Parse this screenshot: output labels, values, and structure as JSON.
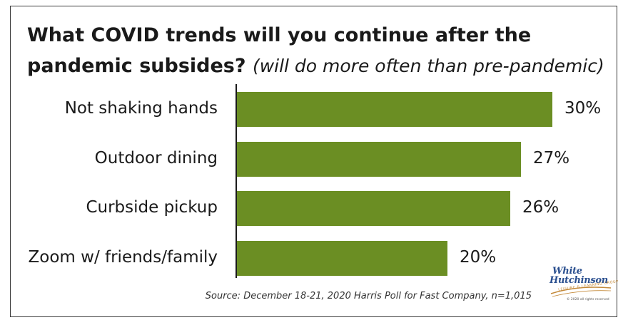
{
  "chart_data": {
    "type": "bar",
    "orientation": "horizontal",
    "title": "What COVID trends will you continue after the pandemic subsides?",
    "subtitle": "(will do more often than pre-pandemic)",
    "categories": [
      "Not shaking hands",
      "Outdoor dining",
      "Curbside pickup",
      "Zoom w/ friends/family"
    ],
    "values": [
      30,
      27,
      26,
      20
    ],
    "value_labels": [
      "30%",
      "27%",
      "26%",
      "20%"
    ],
    "unit": "%",
    "xlim": [
      0,
      30
    ],
    "grid": false,
    "legend": "none",
    "bar_color": "#6b8e23"
  },
  "source": "Source: December 18-21, 2020 Harris Poll for Fast Company, n=1,015",
  "logo": {
    "line1": "White",
    "line2": "Hutchinson",
    "tagline": "LEISURE & LEARNING GROUP",
    "copyright": "© 2020 all rights reserved"
  }
}
